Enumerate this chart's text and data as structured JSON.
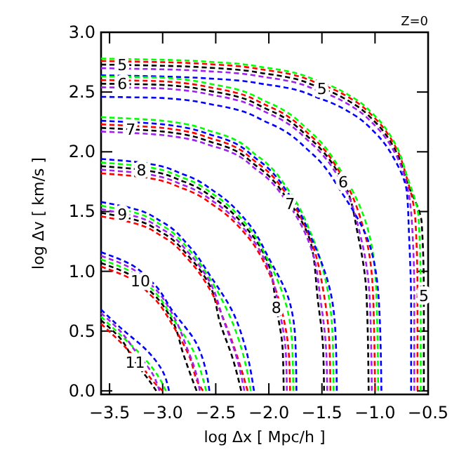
{
  "chart_data": {
    "type": "line",
    "xlabel": "log Δx  [ Mpc/h ]",
    "ylabel": "log Δv  [ km/s ]",
    "xlim": [
      -3.58,
      -0.5
    ],
    "ylim": [
      -0.03,
      3.0
    ],
    "xticks": [
      {
        "value": -3.5,
        "label": "−3.5"
      },
      {
        "value": -3.0,
        "label": "−3.0"
      },
      {
        "value": -2.5,
        "label": "−2.5"
      },
      {
        "value": -2.0,
        "label": "−2.0"
      },
      {
        "value": -1.5,
        "label": "−1.5"
      },
      {
        "value": -1.0,
        "label": "−1.0"
      },
      {
        "value": -0.5,
        "label": "−0.5"
      }
    ],
    "yticks": [
      {
        "value": 0,
        "label": "0.0"
      },
      0.5,
      {
        "value": 1,
        "label": "1.0"
      },
      1.5,
      {
        "value": 2,
        "label": "2.0"
      },
      2.5,
      {
        "value": 3,
        "label": "3.0"
      }
    ],
    "line_style": "dashed",
    "marker": "none",
    "grid": false,
    "series": [
      {
        "color": "#000000",
        "x": [
          -3.58,
          -3,
          -2.5,
          -2,
          -1.5,
          -1.2,
          -1,
          -0.8,
          -0.7,
          -0.56,
          -0.54,
          -0.54
        ],
        "values": [
          2.73,
          2.72,
          2.7,
          2.65,
          2.53,
          2.4,
          2.25,
          2.0,
          1.75,
          1.4,
          0.8,
          0
        ]
      },
      {
        "color": "#ff0000",
        "x": [
          -3.58,
          -3,
          -2.5,
          -2,
          -1.5,
          -1.2,
          -1,
          -0.8,
          -0.7,
          -0.62,
          -0.6,
          -0.6
        ],
        "values": [
          2.76,
          2.75,
          2.73,
          2.68,
          2.56,
          2.43,
          2.28,
          2.03,
          1.78,
          1.43,
          0.83,
          0
        ]
      },
      {
        "color": "#00ff00",
        "x": [
          -3.58,
          -3,
          -2.5,
          -2,
          -1.5,
          -1.2,
          -1,
          -0.8,
          -0.7,
          -0.59,
          -0.57,
          -0.57
        ],
        "values": [
          2.78,
          2.77,
          2.75,
          2.7,
          2.58,
          2.45,
          2.3,
          2.05,
          1.8,
          1.45,
          0.85,
          0
        ]
      },
      {
        "color": "#a020f0",
        "x": [
          -3.58,
          -3,
          -2.5,
          -2,
          -1.5,
          -1.2,
          -1,
          -0.8,
          -0.7,
          -0.65,
          -0.63,
          -0.63
        ],
        "values": [
          2.7,
          2.69,
          2.67,
          2.62,
          2.5,
          2.37,
          2.22,
          1.97,
          1.72,
          1.37,
          0.77,
          0
        ]
      },
      {
        "color": "#0000ff",
        "x": [
          -3.58,
          -3,
          -2.5,
          -2,
          -1.5,
          -1.2,
          -1,
          -0.8,
          -0.7,
          -0.68,
          -0.66,
          -0.66
        ],
        "values": [
          2.64,
          2.63,
          2.61,
          2.56,
          2.44,
          2.31,
          2.16,
          1.91,
          1.66,
          1.31,
          0.71,
          0
        ]
      },
      {
        "color": "#000000",
        "x": [
          -3.58,
          -3,
          -2.5,
          -2,
          -1.6,
          -1.3,
          -1.16,
          -1.08,
          -1.06
        ],
        "values": [
          2.57,
          2.56,
          2.5,
          2.35,
          2.1,
          1.75,
          1.3,
          0.8,
          0
        ]
      },
      {
        "color": "#ff0000",
        "x": [
          -3.58,
          -3,
          -2.5,
          -2,
          -1.6,
          -1.3,
          -1.1,
          -1.02,
          -1.0
        ],
        "values": [
          2.6,
          2.59,
          2.53,
          2.38,
          2.13,
          1.78,
          1.33,
          0.83,
          0
        ]
      },
      {
        "color": "#00ff00",
        "x": [
          -3.58,
          -3,
          -2.5,
          -2,
          -1.6,
          -1.3,
          -1.07,
          -0.99,
          -0.97
        ],
        "values": [
          2.63,
          2.62,
          2.56,
          2.41,
          2.16,
          1.81,
          1.36,
          0.86,
          0
        ]
      },
      {
        "color": "#a020f0",
        "x": [
          -3.58,
          -3,
          -2.5,
          -2,
          -1.6,
          -1.3,
          -1.13,
          -1.05,
          -1.03
        ],
        "values": [
          2.54,
          2.53,
          2.47,
          2.32,
          2.07,
          1.72,
          1.27,
          0.77,
          0
        ]
      },
      {
        "color": "#0000ff",
        "x": [
          -3.58,
          -3,
          -2.5,
          -2,
          -1.6,
          -1.3,
          -1.04,
          -0.96,
          -0.94
        ],
        "values": [
          2.46,
          2.45,
          2.39,
          2.24,
          1.99,
          1.64,
          1.19,
          0.69,
          0
        ]
      },
      {
        "color": "#000000",
        "x": [
          -3.58,
          -3,
          -2.5,
          -2.1,
          -1.8,
          -1.6,
          -1.54,
          -1.49,
          -1.48
        ],
        "values": [
          2.2,
          2.17,
          2.07,
          1.87,
          1.57,
          1.22,
          0.77,
          0.37,
          0
        ]
      },
      {
        "color": "#ff0000",
        "x": [
          -3.58,
          -3,
          -2.5,
          -2.1,
          -1.8,
          -1.6,
          -1.48,
          -1.43,
          -1.42
        ],
        "values": [
          2.23,
          2.2,
          2.1,
          1.9,
          1.6,
          1.25,
          0.8,
          0.4,
          0
        ]
      },
      {
        "color": "#00ff00",
        "x": [
          -3.58,
          -3,
          -2.5,
          -2.1,
          -1.8,
          -1.6,
          -1.45,
          -1.4,
          -1.39
        ],
        "values": [
          2.29,
          2.26,
          2.16,
          1.96,
          1.66,
          1.31,
          0.86,
          0.46,
          0
        ]
      },
      {
        "color": "#a020f0",
        "x": [
          -3.58,
          -3,
          -2.5,
          -2.1,
          -1.8,
          -1.6,
          -1.51,
          -1.46,
          -1.45
        ],
        "values": [
          2.17,
          2.14,
          2.04,
          1.84,
          1.54,
          1.19,
          0.74,
          0.34,
          0
        ]
      },
      {
        "color": "#0000ff",
        "x": [
          -3.58,
          -3,
          -2.5,
          -2.1,
          -1.8,
          -1.6,
          -1.42,
          -1.37,
          -1.36
        ],
        "values": [
          2.26,
          2.23,
          2.13,
          1.93,
          1.63,
          1.28,
          0.83,
          0.43,
          0
        ]
      },
      {
        "color": "#000000",
        "x": [
          -3.58,
          -3.2,
          -2.8,
          -2.5,
          -2.2,
          -2,
          -1.93,
          -1.87,
          -1.86
        ],
        "values": [
          1.88,
          1.85,
          1.75,
          1.6,
          1.35,
          1.05,
          0.7,
          0.35,
          0
        ]
      },
      {
        "color": "#ff0000",
        "x": [
          -3.58,
          -3.2,
          -2.8,
          -2.5,
          -2.2,
          -2,
          -1.87,
          -1.81,
          -1.8
        ],
        "values": [
          1.82,
          1.79,
          1.69,
          1.54,
          1.29,
          0.99,
          0.64,
          0.29,
          0
        ]
      },
      {
        "color": "#00ff00",
        "x": [
          -3.58,
          -3.2,
          -2.8,
          -2.5,
          -2.2,
          -2,
          -1.84,
          -1.78,
          -1.77
        ],
        "values": [
          1.91,
          1.88,
          1.78,
          1.63,
          1.38,
          1.08,
          0.73,
          0.38,
          0
        ]
      },
      {
        "color": "#a020f0",
        "x": [
          -3.58,
          -3.2,
          -2.8,
          -2.5,
          -2.2,
          -2,
          -1.9,
          -1.84,
          -1.83
        ],
        "values": [
          1.85,
          1.82,
          1.72,
          1.57,
          1.32,
          1.02,
          0.67,
          0.32,
          0
        ]
      },
      {
        "color": "#0000ff",
        "x": [
          -3.58,
          -3.2,
          -2.8,
          -2.5,
          -2.2,
          -2,
          -1.81,
          -1.75,
          -1.74
        ],
        "values": [
          1.94,
          1.91,
          1.81,
          1.66,
          1.41,
          1.11,
          0.76,
          0.41,
          0
        ]
      },
      {
        "color": "#000000",
        "x": [
          -3.58,
          -3.3,
          -3,
          -2.75,
          -2.55,
          -2.46,
          -2.34,
          -2.26
        ],
        "values": [
          1.49,
          1.44,
          1.32,
          1.12,
          0.87,
          0.57,
          0.27,
          0
        ]
      },
      {
        "color": "#ff0000",
        "x": [
          -3.58,
          -3.3,
          -3,
          -2.75,
          -2.55,
          -2.4,
          -2.28,
          -2.2
        ],
        "values": [
          1.46,
          1.41,
          1.29,
          1.09,
          0.84,
          0.54,
          0.24,
          0
        ]
      },
      {
        "color": "#00ff00",
        "x": [
          -3.58,
          -3.3,
          -3,
          -2.75,
          -2.55,
          -2.37,
          -2.25,
          -2.17
        ],
        "values": [
          1.55,
          1.5,
          1.38,
          1.18,
          0.93,
          0.63,
          0.33,
          0
        ]
      },
      {
        "color": "#a020f0",
        "x": [
          -3.58,
          -3.3,
          -3,
          -2.75,
          -2.55,
          -2.43,
          -2.31,
          -2.23
        ],
        "values": [
          1.52,
          1.47,
          1.35,
          1.15,
          0.9,
          0.6,
          0.3,
          0
        ]
      },
      {
        "color": "#0000ff",
        "x": [
          -3.58,
          -3.3,
          -3,
          -2.75,
          -2.55,
          -2.34,
          -2.22,
          -2.14
        ],
        "values": [
          1.58,
          1.53,
          1.41,
          1.21,
          0.96,
          0.66,
          0.36,
          0
        ]
      },
      {
        "color": "#000000",
        "x": [
          -3.58,
          -3.35,
          -3.1,
          -2.9,
          -2.81,
          -2.71,
          -2.68
        ],
        "values": [
          1.07,
          0.99,
          0.82,
          0.57,
          0.32,
          0.07,
          0
        ]
      },
      {
        "color": "#ff0000",
        "x": [
          -3.58,
          -3.35,
          -3.1,
          -2.9,
          -2.75,
          -2.65,
          -2.62
        ],
        "values": [
          1.04,
          0.96,
          0.79,
          0.54,
          0.29,
          0.04,
          0
        ]
      },
      {
        "color": "#00ff00",
        "x": [
          -3.58,
          -3.35,
          -3.1,
          -2.9,
          -2.72,
          -2.62,
          -2.59
        ],
        "values": [
          1.1,
          1.02,
          0.85,
          0.6,
          0.35,
          0.1,
          0
        ]
      },
      {
        "color": "#a020f0",
        "x": [
          -3.58,
          -3.35,
          -3.1,
          -2.9,
          -2.78,
          -2.68,
          -2.65
        ],
        "values": [
          1.13,
          1.05,
          0.88,
          0.63,
          0.38,
          0.13,
          0
        ]
      },
      {
        "color": "#0000ff",
        "x": [
          -3.58,
          -3.35,
          -3.1,
          -2.9,
          -2.69,
          -2.59,
          -2.56
        ],
        "values": [
          1.16,
          1.08,
          0.91,
          0.66,
          0.41,
          0.16,
          0
        ]
      },
      {
        "color": "#000000",
        "x": [
          -3.58,
          -3.4,
          -3.26,
          -3.13,
          -3.06
        ],
        "values": [
          0.59,
          0.44,
          0.24,
          0.09,
          0
        ]
      },
      {
        "color": "#ff0000",
        "x": [
          -3.58,
          -3.4,
          -3.2,
          -3.07,
          -3.0
        ],
        "values": [
          0.56,
          0.41,
          0.21,
          0.06,
          0
        ]
      },
      {
        "color": "#00ff00",
        "x": [
          -3.58,
          -3.4,
          -3.17,
          -3.04,
          -2.97
        ],
        "values": [
          0.62,
          0.47,
          0.27,
          0.12,
          0
        ]
      },
      {
        "color": "#a020f0",
        "x": [
          -3.58,
          -3.4,
          -3.23,
          -3.1,
          -3.03
        ],
        "values": [
          0.65,
          0.5,
          0.3,
          0.15,
          0
        ]
      },
      {
        "color": "#0000ff",
        "x": [
          -3.58,
          -3.4,
          -3.14,
          -3.01,
          -2.94
        ],
        "values": [
          0.68,
          0.53,
          0.33,
          0.18,
          0
        ]
      }
    ],
    "annotations": [
      "Z=0",
      {
        "text": "5",
        "x": -3.38,
        "y": 2.73
      },
      {
        "text": "6",
        "x": -3.38,
        "y": 2.57
      },
      {
        "text": "7",
        "x": -3.3,
        "y": 2.19
      },
      {
        "text": "8",
        "x": -3.2,
        "y": 1.85
      },
      {
        "text": "9",
        "x": -3.38,
        "y": 1.48
      },
      {
        "text": "10",
        "x": -3.21,
        "y": 0.92
      },
      {
        "text": "11",
        "x": -3.26,
        "y": 0.24
      },
      {
        "text": "5",
        "x": -1.5,
        "y": 2.53
      },
      {
        "text": "6",
        "x": -1.3,
        "y": 1.75
      },
      {
        "text": "7",
        "x": -1.8,
        "y": 1.57
      },
      {
        "text": "8",
        "x": -1.93,
        "y": 0.7
      },
      {
        "text": "5",
        "x": -0.54,
        "y": 0.8
      }
    ]
  }
}
